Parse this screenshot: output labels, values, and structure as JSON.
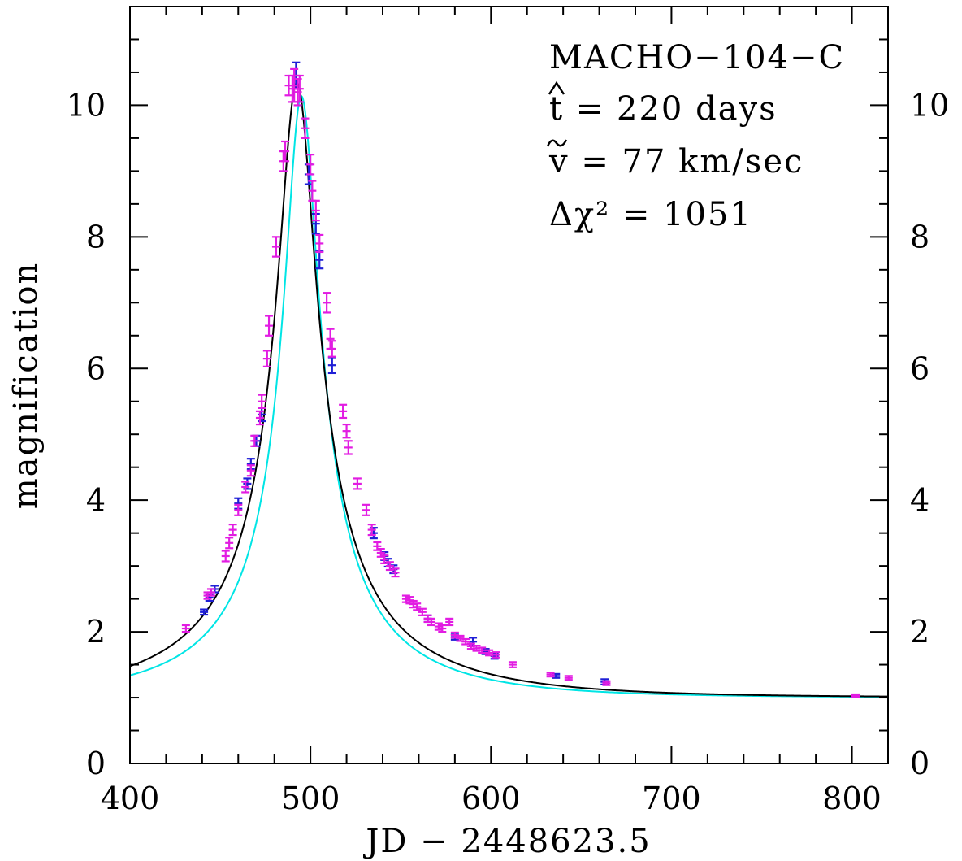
{
  "chart_data": {
    "type": "scatter",
    "title": "",
    "xlabel": "JD − 2448623.5",
    "ylabel": "magnification",
    "xlim": [
      400,
      820
    ],
    "ylim": [
      0,
      11.5
    ],
    "x_ticks": [
      400,
      500,
      600,
      700,
      800
    ],
    "y_ticks": [
      0,
      2,
      4,
      6,
      8,
      10
    ],
    "grid": false,
    "annotations": {
      "event": "MACHO−104−C",
      "t_hat": "t = 220 days",
      "v_tilde": "v = 77 km/sec",
      "delta_chi2": "Δχ² = 1051"
    },
    "models": [
      {
        "color": "#000000",
        "t0": 492.5,
        "umin": 0.097,
        "tE": 110
      },
      {
        "color": "#00e5e5",
        "t0": 495,
        "umin": 0.099,
        "tE": 95
      }
    ],
    "series": [
      {
        "color": "#1f1fd6",
        "points": [
          [
            441,
            2.3,
            0.04
          ],
          [
            444,
            2.52,
            0.05
          ],
          [
            447,
            2.65,
            0.05
          ],
          [
            460,
            3.95,
            0.08
          ],
          [
            465,
            4.25,
            0.08
          ],
          [
            467,
            4.55,
            0.08
          ],
          [
            470,
            4.9,
            0.08
          ],
          [
            473,
            5.3,
            0.1
          ],
          [
            492,
            10.45,
            0.2
          ],
          [
            499,
            8.95,
            0.15
          ],
          [
            503,
            8.2,
            0.15
          ],
          [
            505,
            7.65,
            0.13
          ],
          [
            512,
            6.05,
            0.12
          ],
          [
            535,
            3.5,
            0.08
          ],
          [
            541,
            3.15,
            0.06
          ],
          [
            543,
            3.05,
            0.06
          ],
          [
            546,
            2.95,
            0.06
          ],
          [
            565,
            2.2,
            0.05
          ],
          [
            580,
            1.92,
            0.04
          ],
          [
            590,
            1.85,
            0.06
          ],
          [
            597,
            1.7,
            0.04
          ],
          [
            602,
            1.63,
            0.04
          ],
          [
            636,
            1.33,
            0.03
          ],
          [
            663,
            1.24,
            0.04
          ]
        ]
      },
      {
        "color": "#e21ce2",
        "points": [
          [
            431,
            2.05,
            0.05
          ],
          [
            443,
            2.55,
            0.05
          ],
          [
            445,
            2.6,
            0.05
          ],
          [
            453,
            3.15,
            0.08
          ],
          [
            455,
            3.35,
            0.08
          ],
          [
            457,
            3.55,
            0.08
          ],
          [
            460,
            3.85,
            0.08
          ],
          [
            464,
            4.2,
            0.08
          ],
          [
            467,
            4.45,
            0.08
          ],
          [
            469,
            4.9,
            0.08
          ],
          [
            472,
            5.25,
            0.1
          ],
          [
            473,
            5.5,
            0.1
          ],
          [
            476,
            6.15,
            0.12
          ],
          [
            477,
            6.65,
            0.15
          ],
          [
            481,
            7.85,
            0.15
          ],
          [
            485,
            9.15,
            0.15
          ],
          [
            486,
            9.3,
            0.15
          ],
          [
            488,
            10.3,
            0.15
          ],
          [
            490,
            10.25,
            0.2
          ],
          [
            491,
            10.3,
            0.25
          ],
          [
            493,
            10.2,
            0.2
          ],
          [
            494,
            10.25,
            0.2
          ],
          [
            497,
            9.65,
            0.15
          ],
          [
            500,
            9.1,
            0.15
          ],
          [
            501,
            8.7,
            0.15
          ],
          [
            503,
            8.4,
            0.15
          ],
          [
            505,
            7.9,
            0.13
          ],
          [
            509,
            7.0,
            0.15
          ],
          [
            511,
            6.45,
            0.15
          ],
          [
            512,
            6.3,
            0.12
          ],
          [
            518,
            5.35,
            0.1
          ],
          [
            520,
            5.05,
            0.1
          ],
          [
            521,
            4.8,
            0.1
          ],
          [
            526,
            4.25,
            0.08
          ],
          [
            531,
            3.85,
            0.08
          ],
          [
            534,
            3.55,
            0.08
          ],
          [
            537,
            3.3,
            0.06
          ],
          [
            539,
            3.2,
            0.06
          ],
          [
            541,
            3.1,
            0.06
          ],
          [
            544,
            3.0,
            0.06
          ],
          [
            547,
            2.9,
            0.06
          ],
          [
            553,
            2.5,
            0.05
          ],
          [
            555,
            2.48,
            0.05
          ],
          [
            557,
            2.42,
            0.05
          ],
          [
            559,
            2.38,
            0.05
          ],
          [
            562,
            2.3,
            0.05
          ],
          [
            565,
            2.2,
            0.05
          ],
          [
            567,
            2.15,
            0.05
          ],
          [
            571,
            2.08,
            0.05
          ],
          [
            573,
            2.05,
            0.05
          ],
          [
            577,
            2.15,
            0.05
          ],
          [
            580,
            1.95,
            0.04
          ],
          [
            583,
            1.9,
            0.04
          ],
          [
            586,
            1.85,
            0.04
          ],
          [
            589,
            1.78,
            0.04
          ],
          [
            592,
            1.75,
            0.04
          ],
          [
            595,
            1.72,
            0.04
          ],
          [
            599,
            1.68,
            0.04
          ],
          [
            603,
            1.65,
            0.04
          ],
          [
            612,
            1.5,
            0.04
          ],
          [
            633,
            1.35,
            0.03
          ],
          [
            643,
            1.3,
            0.03
          ],
          [
            664,
            1.22,
            0.03
          ],
          [
            802,
            1.03,
            0.02
          ]
        ]
      }
    ]
  }
}
